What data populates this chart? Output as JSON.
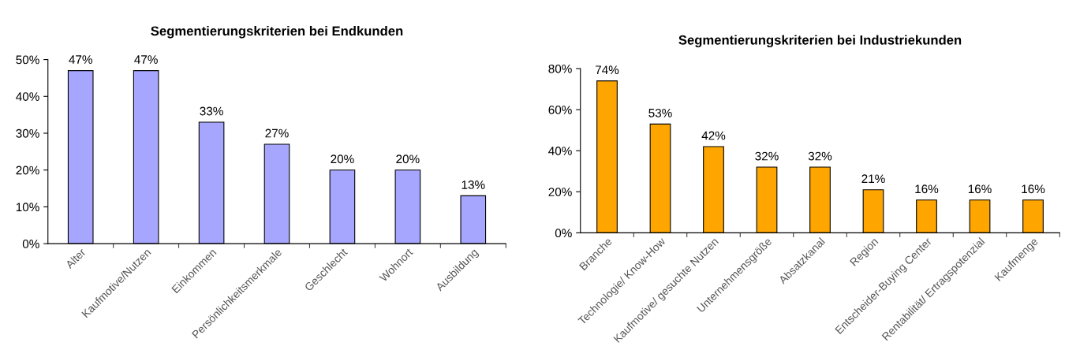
{
  "chart_data": [
    {
      "type": "bar",
      "title": "Segmentierungskriterien bei Endkunden",
      "categories": [
        "Alter",
        "Kaufmotive/Nutzen",
        "Einkommen",
        "Persönlichkeitsmerkmale",
        "Geschlecht",
        "Wohnort",
        "Ausbildung"
      ],
      "values": [
        47,
        47,
        33,
        27,
        20,
        20,
        13
      ],
      "value_labels": [
        "47%",
        "47%",
        "33%",
        "27%",
        "20%",
        "20%",
        "13%"
      ],
      "color": "#a6a6ff",
      "ylim": [
        0,
        50
      ],
      "yticks": [
        {
          "value": 0,
          "label": "0%"
        },
        {
          "value": 10,
          "label": "10%"
        },
        {
          "value": 20,
          "label": "20%"
        },
        {
          "value": 30,
          "label": "30%"
        },
        {
          "value": 40,
          "label": "40%"
        },
        {
          "value": 50,
          "label": "50%"
        }
      ],
      "grid": false,
      "legend": false
    },
    {
      "type": "bar",
      "title": "Segmentierungskriterien bei Industriekunden",
      "categories": [
        "Branche",
        "Technologie/ Know-How",
        "Kaufmotive/ gesuchte Nutzen",
        "Unternehmensgröße",
        "Absatzkanal",
        "Region",
        "Entscheider-Buying Center",
        "Rentabilität/ Ertragspotenzial",
        "Kaufmenge"
      ],
      "values": [
        74,
        53,
        42,
        32,
        32,
        21,
        16,
        16,
        16
      ],
      "value_labels": [
        "74%",
        "53%",
        "42%",
        "32%",
        "32%",
        "21%",
        "16%",
        "16%",
        "16%"
      ],
      "color": "#ffa500",
      "ylim": [
        0,
        80
      ],
      "yticks": [
        {
          "value": 0,
          "label": "0%"
        },
        {
          "value": 20,
          "label": "20%"
        },
        {
          "value": 40,
          "label": "40%"
        },
        {
          "value": 60,
          "label": "60%"
        },
        {
          "value": 80,
          "label": "80%"
        }
      ],
      "grid": false,
      "legend": false
    }
  ]
}
